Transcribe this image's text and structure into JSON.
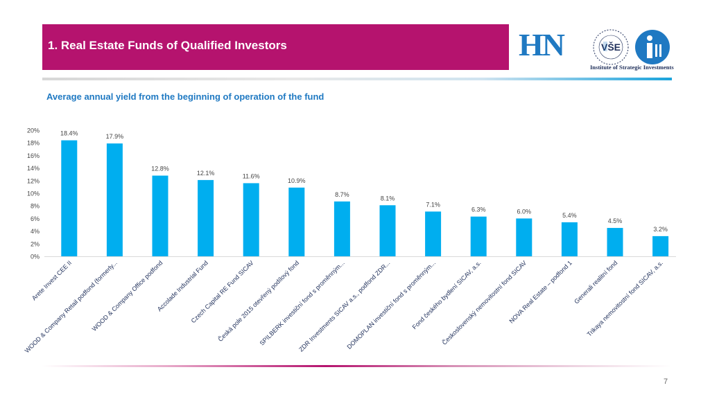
{
  "header": {
    "title": "1. Real Estate Funds of Qualified Investors"
  },
  "logos": {
    "hn": "HN",
    "vse": "VŠE",
    "isi_caption": "Institute of Strategic Investments"
  },
  "chart_data": {
    "type": "bar",
    "title": "Average annual yield from the beginning of operation of the fund",
    "bar_color": "#00aeef",
    "ylim": [
      0,
      20
    ],
    "yticks": [
      "0%",
      "2%",
      "4%",
      "6%",
      "8%",
      "10%",
      "12%",
      "14%",
      "16%",
      "18%",
      "20%"
    ],
    "categories": [
      "Arete Invest CEE II",
      "WOOD & Company Retail podfond (formerly...",
      "WOOD & Company Office podfond",
      "Accolade Industrial Fund",
      "Czech Capital RE Fund SICAV",
      "Česká pole 2015 otevřený podílový fond",
      "SPILBERK investiční fond s proměnným...",
      "ZDR Investments SICAV a.s., podfond ZDR...",
      "DOMOPLAN investiční fond s proměnným...",
      "Fond českého bydlení SICAV, a.s.",
      "Československý nemovitostní fond SICAV",
      "NOVA Real Estate – podfond 1",
      "Generali realitní fond",
      "Trikaya nemovitostní fond SICAV, a.s."
    ],
    "values": [
      18.4,
      17.9,
      12.8,
      12.1,
      11.6,
      10.9,
      8.7,
      8.1,
      7.1,
      6.3,
      6.0,
      5.4,
      4.5,
      3.2
    ],
    "value_labels": [
      "18.4%",
      "17.9%",
      "12.8%",
      "12.1%",
      "11.6%",
      "10.9%",
      "8.7%",
      "8.1%",
      "7.1%",
      "6.3%",
      "6.0%",
      "5.4%",
      "4.5%",
      "3.2%"
    ]
  },
  "footer": {
    "page_number": "7"
  }
}
